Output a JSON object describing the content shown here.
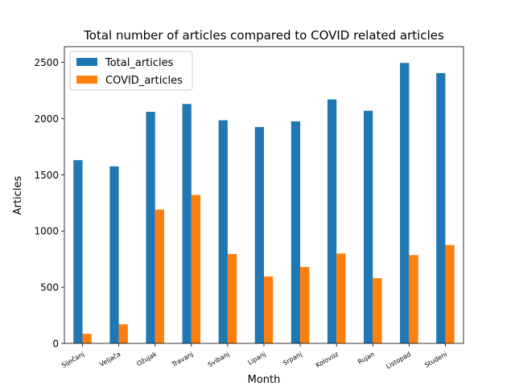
{
  "chart_data": {
    "type": "bar",
    "title": "Total number of articles compared to COVID related articles",
    "xlabel": "Month",
    "ylabel": "Articles",
    "ylim": [
      0,
      2640
    ],
    "yticks": [
      0,
      500,
      1000,
      1500,
      2000,
      2500
    ],
    "categories": [
      "Siječanj",
      "Veljača",
      "Ožujak",
      "Travanj",
      "Svibanj",
      "Lipanj",
      "Srpanj",
      "Kolovoz",
      "Rujan",
      "Listopad",
      "Studeni"
    ],
    "series": [
      {
        "name": "Total_articles",
        "color": "#1f77b4",
        "values": [
          1630,
          1575,
          2060,
          2130,
          1985,
          1925,
          1975,
          2170,
          2070,
          2495,
          2405
        ]
      },
      {
        "name": "COVID_articles",
        "color": "#ff7f0e",
        "values": [
          85,
          170,
          1190,
          1320,
          795,
          595,
          680,
          800,
          580,
          785,
          875
        ]
      }
    ],
    "legend": "top-left",
    "grid": false
  }
}
